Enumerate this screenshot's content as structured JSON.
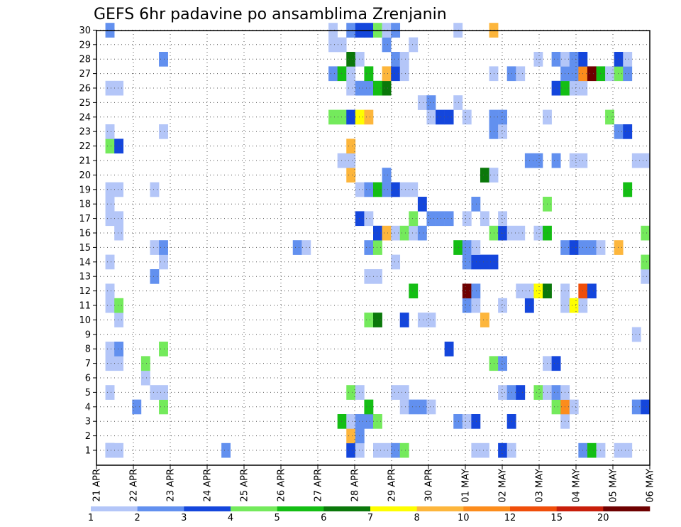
{
  "chart_data": {
    "type": "heatmap",
    "title": "GEFS 6hr padavine po ansamblima Zrenjanin",
    "x_labels": [
      "21 APR",
      "22 APR",
      "23 APR",
      "24 APR",
      "25 APR",
      "26 APR",
      "27 APR",
      "28 APR",
      "29 APR",
      "30 APR",
      "01 MAY",
      "02 MAY",
      "03 MAY",
      "04 MAY",
      "05 MAY",
      "06 MAY"
    ],
    "y_ticks": [
      1,
      2,
      3,
      4,
      5,
      6,
      7,
      8,
      9,
      10,
      11,
      12,
      13,
      14,
      15,
      16,
      17,
      18,
      19,
      20,
      21,
      22,
      23,
      24,
      25,
      26,
      27,
      28,
      29,
      30
    ],
    "legend": {
      "labels": [
        "1",
        "2",
        "3",
        "4",
        "5",
        "6",
        "7",
        "8",
        "10",
        "12",
        "15",
        "20"
      ],
      "colors": [
        "#b4c6f8",
        "#6290ef",
        "#1446dc",
        "#74ea5c",
        "#14be14",
        "#0a780a",
        "#fefe00",
        "#fdb63c",
        "#fc8c1c",
        "#f04e0a",
        "#c81e0a",
        "#6e0000"
      ]
    },
    "grid": true,
    "cells": [
      [
        1,
        1,
        2
      ],
      [
        1,
        1,
        1
      ],
      [
        1,
        2,
        1
      ],
      [
        1,
        14,
        2
      ],
      [
        1,
        28,
        3
      ],
      [
        1,
        29,
        1
      ],
      [
        1,
        31,
        1
      ],
      [
        1,
        32,
        1
      ],
      [
        1,
        33,
        2
      ],
      [
        1,
        34,
        4
      ],
      [
        1,
        42,
        1
      ],
      [
        1,
        43,
        1
      ],
      [
        1,
        45,
        3
      ],
      [
        1,
        46,
        1
      ],
      [
        1,
        54,
        2
      ],
      [
        1,
        55,
        5
      ],
      [
        1,
        56,
        1
      ],
      [
        1,
        58,
        1
      ],
      [
        1,
        59,
        1
      ],
      [
        1,
        68,
        3
      ],
      [
        2,
        28,
        8
      ],
      [
        2,
        29,
        2
      ],
      [
        3,
        27,
        5
      ],
      [
        3,
        28,
        1
      ],
      [
        3,
        29,
        2
      ],
      [
        3,
        30,
        2
      ],
      [
        3,
        31,
        4
      ],
      [
        3,
        40,
        2
      ],
      [
        3,
        41,
        1
      ],
      [
        3,
        42,
        3
      ],
      [
        3,
        46,
        3
      ],
      [
        3,
        52,
        1
      ],
      [
        4,
        4,
        2
      ],
      [
        4,
        7,
        4
      ],
      [
        4,
        30,
        5
      ],
      [
        4,
        34,
        1
      ],
      [
        4,
        35,
        2
      ],
      [
        4,
        36,
        2
      ],
      [
        4,
        37,
        1
      ],
      [
        4,
        51,
        4
      ],
      [
        4,
        52,
        9
      ],
      [
        4,
        53,
        1
      ],
      [
        4,
        60,
        2
      ],
      [
        4,
        61,
        3
      ],
      [
        5,
        1,
        1
      ],
      [
        5,
        6,
        1
      ],
      [
        5,
        7,
        1
      ],
      [
        5,
        28,
        4
      ],
      [
        5,
        29,
        1
      ],
      [
        5,
        33,
        1
      ],
      [
        5,
        34,
        1
      ],
      [
        5,
        45,
        1
      ],
      [
        5,
        46,
        2
      ],
      [
        5,
        47,
        3
      ],
      [
        5,
        49,
        4
      ],
      [
        5,
        50,
        1
      ],
      [
        5,
        51,
        2
      ],
      [
        5,
        52,
        1
      ],
      [
        6,
        5,
        1
      ],
      [
        7,
        1,
        1
      ],
      [
        7,
        2,
        1
      ],
      [
        7,
        5,
        4
      ],
      [
        7,
        44,
        4
      ],
      [
        7,
        45,
        2
      ],
      [
        7,
        50,
        1
      ],
      [
        7,
        51,
        3
      ],
      [
        8,
        1,
        1
      ],
      [
        8,
        2,
        2
      ],
      [
        8,
        7,
        4
      ],
      [
        8,
        39,
        3
      ],
      [
        9,
        60,
        1
      ],
      [
        10,
        2,
        1
      ],
      [
        10,
        30,
        4
      ],
      [
        10,
        31,
        6
      ],
      [
        10,
        34,
        3
      ],
      [
        10,
        36,
        1
      ],
      [
        10,
        37,
        1
      ],
      [
        10,
        43,
        8
      ],
      [
        11,
        1,
        1
      ],
      [
        11,
        2,
        4
      ],
      [
        11,
        41,
        2
      ],
      [
        11,
        42,
        1
      ],
      [
        11,
        45,
        1
      ],
      [
        11,
        48,
        3
      ],
      [
        11,
        52,
        1
      ],
      [
        11,
        53,
        7
      ],
      [
        11,
        54,
        1
      ],
      [
        12,
        1,
        1
      ],
      [
        12,
        35,
        5
      ],
      [
        12,
        41,
        12
      ],
      [
        12,
        42,
        2
      ],
      [
        12,
        47,
        1
      ],
      [
        12,
        48,
        1
      ],
      [
        12,
        49,
        7
      ],
      [
        12,
        50,
        6
      ],
      [
        12,
        52,
        1
      ],
      [
        12,
        54,
        10
      ],
      [
        12,
        55,
        3
      ],
      [
        13,
        6,
        2
      ],
      [
        13,
        30,
        1
      ],
      [
        13,
        31,
        1
      ],
      [
        13,
        61,
        1
      ],
      [
        14,
        1,
        1
      ],
      [
        14,
        7,
        1
      ],
      [
        14,
        33,
        1
      ],
      [
        14,
        41,
        2
      ],
      [
        14,
        42,
        3
      ],
      [
        14,
        43,
        3
      ],
      [
        14,
        44,
        3
      ],
      [
        14,
        61,
        4
      ],
      [
        15,
        6,
        1
      ],
      [
        15,
        7,
        2
      ],
      [
        15,
        22,
        2
      ],
      [
        15,
        23,
        1
      ],
      [
        15,
        30,
        2
      ],
      [
        15,
        31,
        4
      ],
      [
        15,
        40,
        5
      ],
      [
        15,
        41,
        2
      ],
      [
        15,
        42,
        1
      ],
      [
        15,
        52,
        2
      ],
      [
        15,
        53,
        3
      ],
      [
        15,
        54,
        2
      ],
      [
        15,
        55,
        2
      ],
      [
        15,
        56,
        1
      ],
      [
        15,
        58,
        8
      ],
      [
        16,
        2,
        1
      ],
      [
        16,
        31,
        3
      ],
      [
        16,
        32,
        8
      ],
      [
        16,
        33,
        1
      ],
      [
        16,
        34,
        4
      ],
      [
        16,
        35,
        1
      ],
      [
        16,
        36,
        2
      ],
      [
        16,
        44,
        4
      ],
      [
        16,
        45,
        3
      ],
      [
        16,
        46,
        1
      ],
      [
        16,
        47,
        1
      ],
      [
        16,
        49,
        1
      ],
      [
        16,
        50,
        5
      ],
      [
        16,
        61,
        4
      ],
      [
        17,
        1,
        1
      ],
      [
        17,
        2,
        1
      ],
      [
        17,
        29,
        3
      ],
      [
        17,
        30,
        1
      ],
      [
        17,
        35,
        4
      ],
      [
        17,
        37,
        2
      ],
      [
        17,
        38,
        2
      ],
      [
        17,
        39,
        2
      ],
      [
        17,
        41,
        1
      ],
      [
        17,
        43,
        1
      ],
      [
        17,
        45,
        1
      ],
      [
        18,
        1,
        1
      ],
      [
        18,
        36,
        3
      ],
      [
        18,
        42,
        2
      ],
      [
        18,
        50,
        4
      ],
      [
        19,
        1,
        1
      ],
      [
        19,
        2,
        1
      ],
      [
        19,
        6,
        1
      ],
      [
        19,
        29,
        1
      ],
      [
        19,
        30,
        2
      ],
      [
        19,
        31,
        5
      ],
      [
        19,
        32,
        2
      ],
      [
        19,
        33,
        3
      ],
      [
        19,
        34,
        1
      ],
      [
        19,
        35,
        1
      ],
      [
        19,
        59,
        5
      ],
      [
        20,
        28,
        8
      ],
      [
        20,
        32,
        2
      ],
      [
        20,
        43,
        6
      ],
      [
        20,
        44,
        1
      ],
      [
        21,
        27,
        1
      ],
      [
        21,
        28,
        1
      ],
      [
        21,
        48,
        2
      ],
      [
        21,
        49,
        2
      ],
      [
        21,
        51,
        2
      ],
      [
        21,
        53,
        1
      ],
      [
        21,
        54,
        1
      ],
      [
        21,
        60,
        1
      ],
      [
        21,
        61,
        1
      ],
      [
        22,
        1,
        4
      ],
      [
        22,
        2,
        3
      ],
      [
        22,
        28,
        8
      ],
      [
        23,
        1,
        1
      ],
      [
        23,
        7,
        1
      ],
      [
        23,
        44,
        2
      ],
      [
        23,
        45,
        1
      ],
      [
        23,
        58,
        2
      ],
      [
        23,
        59,
        3
      ],
      [
        24,
        26,
        4
      ],
      [
        24,
        27,
        4
      ],
      [
        24,
        28,
        3
      ],
      [
        24,
        29,
        7
      ],
      [
        24,
        30,
        8
      ],
      [
        24,
        37,
        1
      ],
      [
        24,
        38,
        3
      ],
      [
        24,
        39,
        3
      ],
      [
        24,
        41,
        1
      ],
      [
        24,
        44,
        2
      ],
      [
        24,
        45,
        2
      ],
      [
        24,
        50,
        1
      ],
      [
        24,
        57,
        4
      ],
      [
        25,
        36,
        1
      ],
      [
        25,
        37,
        2
      ],
      [
        25,
        40,
        1
      ],
      [
        26,
        1,
        1
      ],
      [
        26,
        2,
        1
      ],
      [
        26,
        28,
        1
      ],
      [
        26,
        29,
        2
      ],
      [
        26,
        30,
        2
      ],
      [
        26,
        31,
        5
      ],
      [
        26,
        32,
        6
      ],
      [
        26,
        51,
        3
      ],
      [
        26,
        52,
        5
      ],
      [
        26,
        53,
        1
      ],
      [
        26,
        54,
        1
      ],
      [
        27,
        26,
        2
      ],
      [
        27,
        27,
        5
      ],
      [
        27,
        28,
        1
      ],
      [
        27,
        30,
        5
      ],
      [
        27,
        32,
        8
      ],
      [
        27,
        33,
        3
      ],
      [
        27,
        34,
        1
      ],
      [
        27,
        44,
        1
      ],
      [
        27,
        46,
        2
      ],
      [
        27,
        47,
        1
      ],
      [
        27,
        52,
        2
      ],
      [
        27,
        53,
        2
      ],
      [
        27,
        54,
        9
      ],
      [
        27,
        55,
        12
      ],
      [
        27,
        56,
        5
      ],
      [
        27,
        57,
        1
      ],
      [
        27,
        58,
        4
      ],
      [
        27,
        59,
        2
      ],
      [
        28,
        7,
        2
      ],
      [
        28,
        28,
        6
      ],
      [
        28,
        29,
        1
      ],
      [
        28,
        33,
        2
      ],
      [
        28,
        34,
        1
      ],
      [
        28,
        49,
        1
      ],
      [
        28,
        51,
        2
      ],
      [
        28,
        52,
        1
      ],
      [
        28,
        53,
        2
      ],
      [
        28,
        54,
        3
      ],
      [
        28,
        58,
        3
      ],
      [
        28,
        59,
        1
      ],
      [
        29,
        26,
        1
      ],
      [
        29,
        27,
        1
      ],
      [
        29,
        32,
        2
      ],
      [
        29,
        35,
        1
      ],
      [
        30,
        1,
        2
      ],
      [
        30,
        26,
        1
      ],
      [
        30,
        28,
        2
      ],
      [
        30,
        29,
        3
      ],
      [
        30,
        30,
        3
      ],
      [
        30,
        31,
        4
      ],
      [
        30,
        32,
        1
      ],
      [
        30,
        33,
        2
      ],
      [
        30,
        40,
        1
      ],
      [
        30,
        44,
        8
      ]
    ]
  }
}
